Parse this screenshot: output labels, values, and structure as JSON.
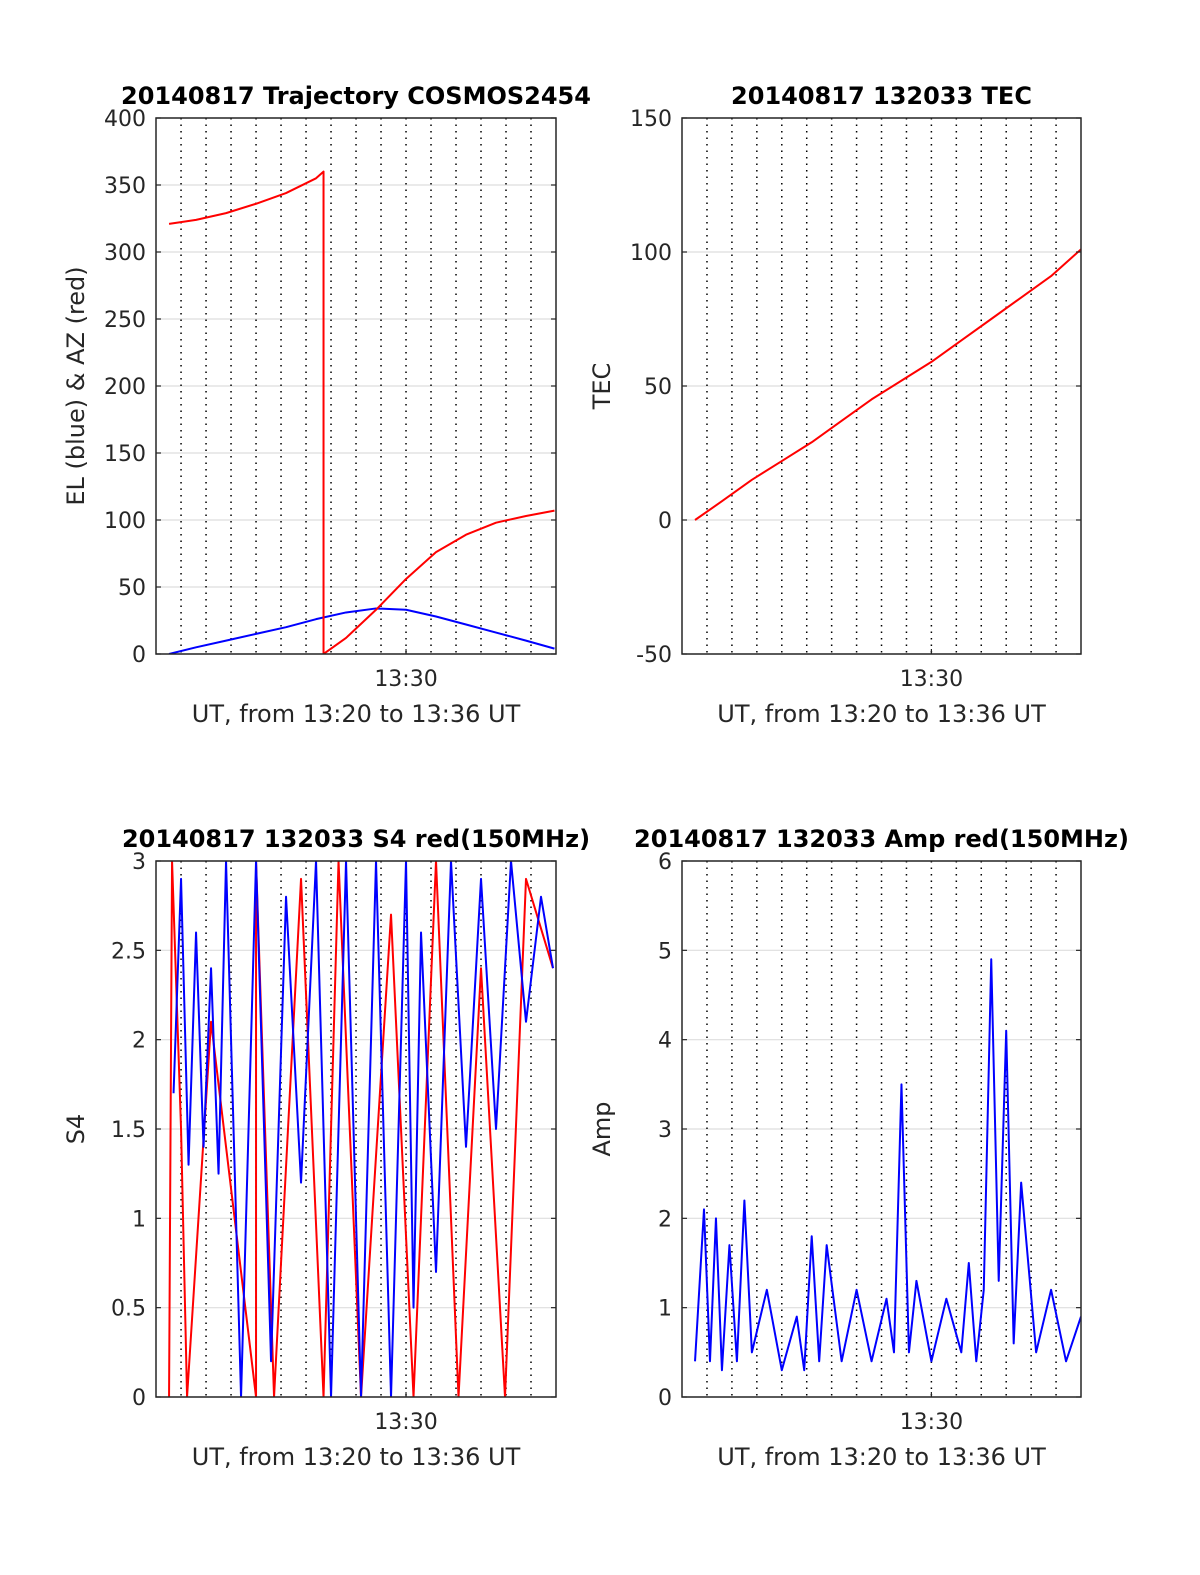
{
  "chart_data": [
    {
      "id": "trajectory",
      "type": "line",
      "title": "20140817 Trajectory COSMOS2454",
      "xlabel": "UT, from 13:20 to 13:36 UT",
      "ylabel": "EL (blue) & AZ (red)",
      "xlim": [
        13.3333,
        13.6
      ],
      "ylim": [
        0,
        400
      ],
      "yticks": [
        0,
        50,
        100,
        150,
        200,
        250,
        300,
        350,
        400
      ],
      "xtick_labels": [
        {
          "x": 13.5,
          "label": "13:30"
        }
      ],
      "grid": true,
      "series": [
        {
          "color": "#0000ff",
          "x": [
            13.342,
            13.36,
            13.38,
            13.4,
            13.42,
            13.44,
            13.46,
            13.48,
            13.5,
            13.52,
            13.54,
            13.56,
            13.58,
            13.599
          ],
          "y": [
            0,
            5,
            10,
            15,
            20,
            26,
            31,
            34,
            33,
            28,
            22,
            16,
            10,
            4
          ]
        },
        {
          "color": "#ff0000",
          "x": [
            13.342,
            13.36,
            13.38,
            13.4,
            13.42,
            13.44,
            13.445,
            13.445,
            13.46,
            13.48,
            13.5,
            13.52,
            13.54,
            13.56,
            13.58,
            13.599
          ],
          "y": [
            321,
            324,
            329,
            336,
            344,
            355,
            360,
            0,
            12,
            33,
            56,
            76,
            89,
            98,
            103,
            107
          ]
        }
      ]
    },
    {
      "id": "tec",
      "type": "line",
      "title": "20140817 132033 TEC",
      "xlabel": "UT, from 13:20 to 13:36 UT",
      "ylabel": "TEC",
      "xlim": [
        13.3333,
        13.6
      ],
      "ylim": [
        -50,
        150
      ],
      "yticks": [
        -50,
        0,
        50,
        100,
        150
      ],
      "xtick_labels": [
        {
          "x": 13.5,
          "label": "13:30"
        }
      ],
      "grid": true,
      "series": [
        {
          "color": "#ff0000",
          "x": [
            13.342,
            13.36,
            13.38,
            13.4,
            13.42,
            13.44,
            13.46,
            13.48,
            13.5,
            13.52,
            13.54,
            13.56,
            13.58,
            13.6
          ],
          "y": [
            0,
            7,
            15,
            22,
            29,
            37,
            45,
            52,
            59,
            67,
            75,
            83,
            91,
            101
          ]
        }
      ]
    },
    {
      "id": "s4",
      "type": "line",
      "title": "20140817 132033 S4 red(150MHz)",
      "xlabel": "UT, from 13:20 to 13:36 UT",
      "ylabel": "S4",
      "xlim": [
        13.3333,
        13.6
      ],
      "ylim": [
        0,
        3
      ],
      "yticks": [
        0,
        0.5,
        1,
        1.5,
        2,
        2.5,
        3
      ],
      "xtick_labels": [
        {
          "x": 13.5,
          "label": "13:30"
        }
      ],
      "grid": true,
      "series": [
        {
          "color": "#ff0000",
          "x": [
            13.342,
            13.344,
            13.35,
            13.354,
            13.37,
            13.4,
            13.4,
            13.412,
            13.43,
            13.445,
            13.455,
            13.47,
            13.49,
            13.505,
            13.52,
            13.535,
            13.55,
            13.566,
            13.58,
            13.598
          ],
          "y": [
            0,
            3,
            1.5,
            0,
            2.1,
            0,
            3,
            0,
            2.9,
            0,
            3,
            0,
            2.7,
            0,
            3,
            0,
            2.4,
            0,
            2.9,
            2.4
          ]
        },
        {
          "color": "#0000ff",
          "x": [
            13.345,
            13.35,
            13.355,
            13.36,
            13.365,
            13.37,
            13.375,
            13.38,
            13.39,
            13.4,
            13.41,
            13.42,
            13.43,
            13.44,
            13.45,
            13.46,
            13.47,
            13.48,
            13.49,
            13.5,
            13.505,
            13.51,
            13.52,
            13.53,
            13.54,
            13.55,
            13.56,
            13.57,
            13.58,
            13.59,
            13.598
          ],
          "y": [
            1.7,
            2.9,
            1.3,
            2.6,
            1.4,
            2.4,
            1.25,
            3,
            0,
            3,
            0.2,
            2.8,
            1.2,
            3,
            0,
            3,
            0,
            3,
            0,
            3,
            0.5,
            2.6,
            0.7,
            3,
            1.4,
            2.9,
            1.5,
            3,
            2.1,
            2.8,
            2.4
          ]
        }
      ]
    },
    {
      "id": "amp",
      "type": "line",
      "title": "20140817 132033 Amp red(150MHz)",
      "xlabel": "UT, from 13:20 to 13:36 UT",
      "ylabel": "Amp",
      "xlim": [
        13.3333,
        13.6
      ],
      "ylim": [
        0,
        6
      ],
      "yticks": [
        0,
        1,
        2,
        3,
        4,
        5,
        6
      ],
      "xtick_labels": [
        {
          "x": 13.5,
          "label": "13:30"
        }
      ],
      "grid": true,
      "series": [
        {
          "color": "#0000ff",
          "x": [
            13.342,
            13.348,
            13.352,
            13.356,
            13.36,
            13.365,
            13.37,
            13.375,
            13.38,
            13.39,
            13.4,
            13.41,
            13.415,
            13.42,
            13.425,
            13.43,
            13.44,
            13.45,
            13.46,
            13.47,
            13.475,
            13.48,
            13.485,
            13.49,
            13.5,
            13.51,
            13.52,
            13.525,
            13.53,
            13.535,
            13.54,
            13.545,
            13.55,
            13.555,
            13.56,
            13.57,
            13.58,
            13.59,
            13.6
          ],
          "y": [
            0.4,
            2.1,
            0.4,
            2,
            0.3,
            1.7,
            0.4,
            2.2,
            0.5,
            1.2,
            0.3,
            0.9,
            0.3,
            1.8,
            0.4,
            1.7,
            0.4,
            1.2,
            0.4,
            1.1,
            0.5,
            3.5,
            0.5,
            1.3,
            0.4,
            1.1,
            0.5,
            1.5,
            0.4,
            1.2,
            4.9,
            1.3,
            4.1,
            0.6,
            2.4,
            0.5,
            1.2,
            0.4,
            0.9
          ]
        }
      ]
    }
  ]
}
